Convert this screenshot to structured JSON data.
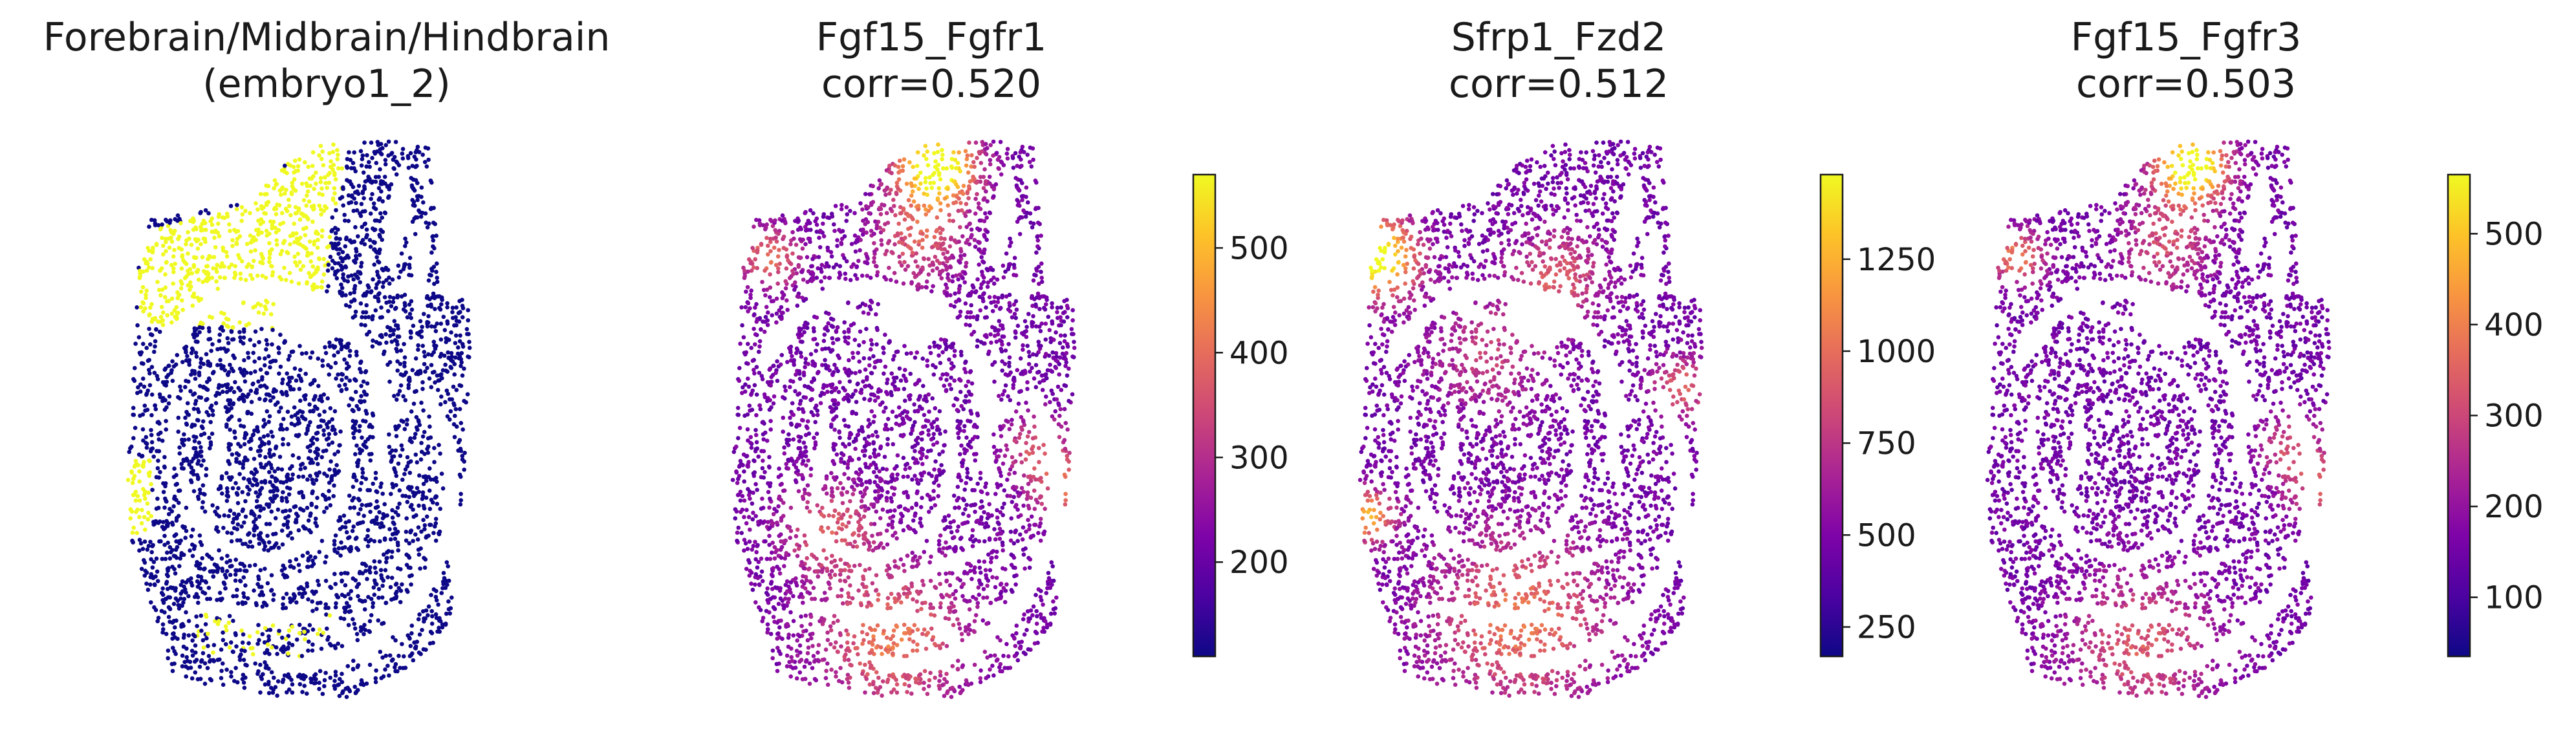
{
  "chart_data": [
    {
      "type": "scatter",
      "title": [
        "Forebrain/Midbrain/Hindbrain",
        "(embryo1_2)"
      ],
      "colormap": "binary",
      "colors": {
        "low": "#0d0887",
        "high": "#f0f921"
      },
      "xlabel": "",
      "ylabel": "",
      "grid": false,
      "axes_visible": false,
      "colorbar": null,
      "highlight_regions": [
        "top-left wedge",
        "lower-left edge",
        "bottom arc"
      ]
    },
    {
      "type": "scatter",
      "title": [
        "Fgf15_Fgfr1",
        "corr=0.520"
      ],
      "colormap": "plasma",
      "xlabel": "",
      "ylabel": "",
      "grid": false,
      "axes_visible": false,
      "colorbar": {
        "min": 110,
        "max": 570,
        "ticks": [
          200,
          300,
          400,
          500
        ],
        "tick_labels": [
          "200",
          "300",
          "400",
          "500"
        ]
      }
    },
    {
      "type": "scatter",
      "title": [
        "Sfrp1_Fzd2",
        "corr=0.512"
      ],
      "colormap": "plasma",
      "xlabel": "",
      "ylabel": "",
      "grid": false,
      "axes_visible": false,
      "colorbar": {
        "min": 170,
        "max": 1480,
        "ticks": [
          250,
          500,
          750,
          1000,
          1250
        ],
        "tick_labels": [
          "250",
          "500",
          "750",
          "1000",
          "1250"
        ]
      }
    },
    {
      "type": "scatter",
      "title": [
        "Fgf15_Fgfr3",
        "corr=0.503"
      ],
      "colormap": "plasma",
      "xlabel": "",
      "ylabel": "",
      "grid": false,
      "axes_visible": false,
      "colorbar": {
        "min": 35,
        "max": 565,
        "ticks": [
          100,
          200,
          300,
          400,
          500
        ],
        "tick_labels": [
          "100",
          "200",
          "300",
          "400",
          "500"
        ]
      }
    }
  ]
}
